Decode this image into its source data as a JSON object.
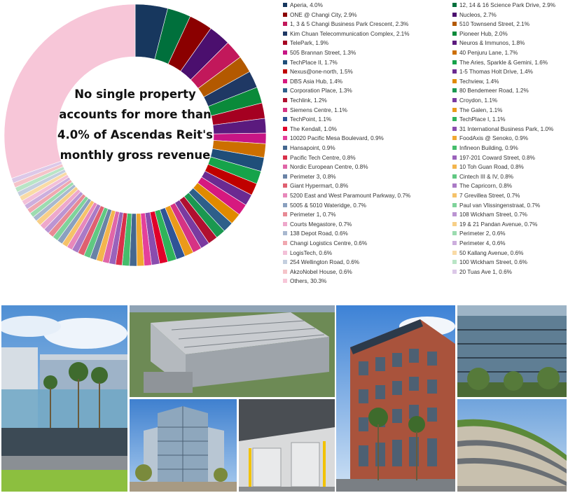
{
  "annotation": {
    "lines": [
      "No single property",
      "accounts for more than",
      "4.0% of Ascendas Reit's",
      "monthly gross revenue"
    ]
  },
  "chart_data": {
    "type": "pie",
    "donut": true,
    "start": "12 o'clock",
    "direction": "clockwise",
    "legend_placement": "right",
    "slices": [
      {
        "label": "Aperia, 4.0%",
        "value": 4.0,
        "color": "#17375e"
      },
      {
        "label": "ONE @ Changi City, 2.9%",
        "value": 2.9,
        "color": "#8b0000"
      },
      {
        "label": "1, 3 & 5 Changi Business Park Crescent, 2.3%",
        "value": 2.3,
        "color": "#c2185b"
      },
      {
        "label": "Kim Chuan Telecommunication Complex, 2.1%",
        "value": 2.1,
        "color": "#1f3864"
      },
      {
        "label": "TelePark, 1.9%",
        "value": 1.9,
        "color": "#a50021"
      },
      {
        "label": "505 Brannan Street, 1.3%",
        "value": 1.3,
        "color": "#c71585"
      },
      {
        "label": "TechPlace II, 1.7%",
        "value": 1.7,
        "color": "#1f4e79"
      },
      {
        "label": "Nexus@one-north, 1.5%",
        "value": 1.5,
        "color": "#c00000"
      },
      {
        "label": "DBS Asia Hub, 1.4%",
        "value": 1.4,
        "color": "#d6197f"
      },
      {
        "label": "Corporation Place, 1.3%",
        "value": 1.3,
        "color": "#2e5f8a"
      },
      {
        "label": "Techlink, 1.2%",
        "value": 1.2,
        "color": "#b01030"
      },
      {
        "label": "Siemens Centre, 1.1%",
        "value": 1.1,
        "color": "#d63384"
      },
      {
        "label": "TechPoint, 1.1%",
        "value": 1.1,
        "color": "#2f5496"
      },
      {
        "label": "The Kendall, 1.0%",
        "value": 1.0,
        "color": "#e0002a"
      },
      {
        "label": "10020 Pacific Mesa Boulevard, 0.9%",
        "value": 0.9,
        "color": "#e4409a"
      },
      {
        "label": "Hansapoint, 0.9%",
        "value": 0.9,
        "color": "#44678f"
      },
      {
        "label": "Pacific Tech Centre, 0.8%",
        "value": 0.8,
        "color": "#d9304a"
      },
      {
        "label": "Nordic European Centre, 0.8%",
        "value": 0.8,
        "color": "#e066a8"
      },
      {
        "label": "Perimeter 3, 0.8%",
        "value": 0.8,
        "color": "#6a83a6"
      },
      {
        "label": "Giant Hypermart, 0.8%",
        "value": 0.8,
        "color": "#e06070"
      },
      {
        "label": "5200 East and West Paramount Parkway, 0.7%",
        "value": 0.7,
        "color": "#e888bb"
      },
      {
        "label": "5005 & 5010 Wateridge, 0.7%",
        "value": 0.7,
        "color": "#8aa0bf"
      },
      {
        "label": "Perimeter 1, 0.7%",
        "value": 0.7,
        "color": "#e88a94"
      },
      {
        "label": "Courts Megastore, 0.7%",
        "value": 0.7,
        "color": "#eea8cb"
      },
      {
        "label": "138 Depot Road, 0.6%",
        "value": 0.6,
        "color": "#a8b8cf"
      },
      {
        "label": "Changi Logistics Centre, 0.6%",
        "value": 0.6,
        "color": "#f0a8b0"
      },
      {
        "label": "LogisTech, 0.6%",
        "value": 0.6,
        "color": "#f3c0d8"
      },
      {
        "label": "254 Wellington Road, 0.6%",
        "value": 0.6,
        "color": "#c4cfdf"
      },
      {
        "label": "AkzoNobel House, 0.6%",
        "value": 0.6,
        "color": "#f5c4c9"
      },
      {
        "label": "12, 14 & 16 Science Park Drive, 2.9%",
        "value": 2.9,
        "color": "#00703c"
      },
      {
        "label": "Nucleos, 2.7%",
        "value": 2.7,
        "color": "#4b0f6e"
      },
      {
        "label": "510 Townsend Street, 2.1%",
        "value": 2.1,
        "color": "#b35900"
      },
      {
        "label": "Pioneer Hub, 2.0%",
        "value": 2.0,
        "color": "#0a8a3a"
      },
      {
        "label": "Neuros & Immunos, 1.8%",
        "value": 1.8,
        "color": "#5b1a7e"
      },
      {
        "label": "40 Penjuru Lane, 1.7%",
        "value": 1.7,
        "color": "#cc6f00"
      },
      {
        "label": "The Aries, Sparkle & Gemini, 1.6%",
        "value": 1.6,
        "color": "#16a34a"
      },
      {
        "label": "1-5 Thomas Holt Drive, 1.4%",
        "value": 1.4,
        "color": "#6b2a91"
      },
      {
        "label": "Techview, 1.4%",
        "value": 1.4,
        "color": "#e08a00"
      },
      {
        "label": "80 Bendemeer Road, 1.2%",
        "value": 1.2,
        "color": "#1a9850"
      },
      {
        "label": "Croydon, 1.1%",
        "value": 1.1,
        "color": "#7a3aa0"
      },
      {
        "label": "The Galen, 1.1%",
        "value": 1.1,
        "color": "#eb9a1a"
      },
      {
        "label": "TechPlace I, 1.1%",
        "value": 1.1,
        "color": "#2fb35a"
      },
      {
        "label": "31 International Business Park, 1.0%",
        "value": 1.0,
        "color": "#8a4cae"
      },
      {
        "label": "FoodAxis @ Senoko, 0.9%",
        "value": 0.9,
        "color": "#f0a830"
      },
      {
        "label": "Infineon Building, 0.9%",
        "value": 0.9,
        "color": "#45bd6b"
      },
      {
        "label": "197-201 Coward Street, 0.8%",
        "value": 0.8,
        "color": "#9a62bb"
      },
      {
        "label": "10 Toh Guan Road, 0.8%",
        "value": 0.8,
        "color": "#f3b54d"
      },
      {
        "label": "Cintech III & IV, 0.8%",
        "value": 0.8,
        "color": "#60c882"
      },
      {
        "label": "The Capricorn, 0.8%",
        "value": 0.8,
        "color": "#aa7ac6"
      },
      {
        "label": "7 Grevillea Street, 0.7%",
        "value": 0.7,
        "color": "#f5c26a"
      },
      {
        "label": "Paul van Vlissingenstraat, 0.7%",
        "value": 0.7,
        "color": "#7fd39a"
      },
      {
        "label": "108 Wickham Street, 0.7%",
        "value": 0.7,
        "color": "#bb94d2"
      },
      {
        "label": "19 & 21 Pandan Avenue, 0.7%",
        "value": 0.7,
        "color": "#f7cf88"
      },
      {
        "label": "Perimeter 2, 0.6%",
        "value": 0.6,
        "color": "#9cdcb0"
      },
      {
        "label": "Perimeter 4, 0.6%",
        "value": 0.6,
        "color": "#ccaedd"
      },
      {
        "label": "50 Kallang Avenue, 0.6%",
        "value": 0.6,
        "color": "#f9dba6"
      },
      {
        "label": "100 Wickham Street, 0.6%",
        "value": 0.6,
        "color": "#b9e5c6"
      },
      {
        "label": "20 Tuas Ave 1, 0.6%",
        "value": 0.6,
        "color": "#dcc8e8"
      },
      {
        "label": "Others, 30.3%",
        "value": 30.3,
        "color": "#f7c6d8"
      }
    ],
    "legend_columns": [
      [
        "Aperia, 4.0%",
        "ONE @ Changi City, 2.9%",
        "1, 3 & 5 Changi Business Park Crescent, 2.3%",
        "Kim Chuan Telecommunication Complex, 2.1%",
        "TelePark, 1.9%",
        "505 Brannan Street, 1.3%",
        "TechPlace II, 1.7%",
        "Nexus@one-north, 1.5%",
        "DBS Asia Hub, 1.4%",
        "Corporation Place, 1.3%",
        "Techlink, 1.2%",
        "Siemens Centre, 1.1%",
        "TechPoint, 1.1%",
        "The Kendall, 1.0%",
        "10020 Pacific Mesa Boulevard, 0.9%",
        "Hansapoint, 0.9%",
        "Pacific Tech Centre, 0.8%",
        "Nordic European Centre, 0.8%",
        "Perimeter 3, 0.8%",
        "Giant Hypermart, 0.8%",
        "5200 East and West Paramount Parkway, 0.7%",
        "5005 & 5010 Wateridge, 0.7%",
        "Perimeter 1, 0.7%",
        "Courts Megastore, 0.7%",
        "138 Depot Road, 0.6%",
        "Changi Logistics Centre, 0.6%",
        "LogisTech, 0.6%",
        "254 Wellington Road, 0.6%",
        "AkzoNobel House, 0.6%",
        "Others, 30.3%"
      ],
      [
        "12, 14 & 16 Science Park Drive, 2.9%",
        "Nucleos, 2.7%",
        "510 Townsend Street, 2.1%",
        "Pioneer Hub, 2.0%",
        "Neuros & Immunos, 1.8%",
        "40 Penjuru Lane, 1.7%",
        "The Aries, Sparkle & Gemini, 1.6%",
        "1-5 Thomas Holt Drive, 1.4%",
        "Techview, 1.4%",
        "80 Bendemeer Road, 1.2%",
        "Croydon, 1.1%",
        "The Galen, 1.1%",
        "TechPlace I, 1.1%",
        "31 International Business Park, 1.0%",
        "FoodAxis @ Senoko, 0.9%",
        "Infineon Building, 0.9%",
        "197-201 Coward Street, 0.8%",
        "10 Toh Guan Road, 0.8%",
        "Cintech III & IV, 0.8%",
        "The Capricorn, 0.8%",
        "7 Grevillea Street, 0.7%",
        "Paul van Vlissingenstraat, 0.7%",
        "108 Wickham Street, 0.7%",
        "19 & 21 Pandan Avenue, 0.7%",
        "Perimeter 2, 0.6%",
        "Perimeter 4, 0.6%",
        "50 Kallang Avenue, 0.6%",
        "100 Wickham Street, 0.6%",
        "20 Tuas Ave 1, 0.6%"
      ]
    ],
    "slice_order_in_ring": [
      0,
      29,
      1,
      30,
      2,
      31,
      3,
      32,
      4,
      33,
      5,
      34,
      6,
      35,
      7,
      36,
      8,
      37,
      9,
      38,
      10,
      39,
      11,
      40,
      12,
      41,
      13,
      42,
      14,
      43,
      15,
      44,
      16,
      45,
      17,
      46,
      18,
      47,
      19,
      48,
      20,
      49,
      21,
      50,
      22,
      51,
      23,
      52,
      24,
      53,
      25,
      54,
      26,
      55,
      27,
      56,
      28,
      57,
      58
    ]
  }
}
